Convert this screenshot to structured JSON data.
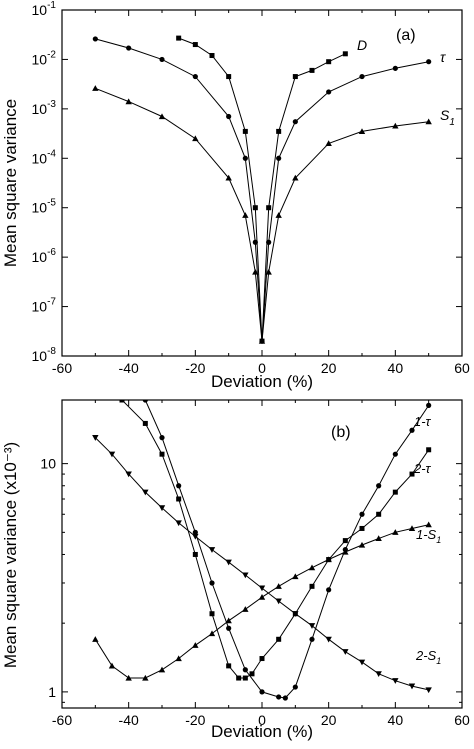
{
  "chart_data": [
    {
      "panel": "(a)",
      "type": "line",
      "xlabel": "Deviation (%)",
      "ylabel": "Mean square variance",
      "xlim": [
        -60,
        60
      ],
      "ylim": [
        1e-08,
        0.1
      ],
      "yscale": "log",
      "xticks": [
        "-60",
        "-40",
        "-20",
        "0",
        "20",
        "40",
        "60"
      ],
      "yticks": [
        {
          "base": "10",
          "exp": "-1"
        },
        {
          "base": "10",
          "exp": "-2"
        },
        {
          "base": "10",
          "exp": "-3"
        },
        {
          "base": "10",
          "exp": "-4"
        },
        {
          "base": "10",
          "exp": "-5"
        },
        {
          "base": "10",
          "exp": "-6"
        },
        {
          "base": "10",
          "exp": "-7"
        },
        {
          "base": "10",
          "exp": "-8"
        }
      ],
      "legend": "none",
      "grid": false,
      "series": [
        {
          "name": "D",
          "marker": "square",
          "x": [
            -25,
            -20,
            -15,
            -10,
            -5,
            -2,
            0,
            2,
            5,
            10,
            15,
            20,
            25
          ],
          "y": [
            0.027,
            0.02,
            0.012,
            0.0045,
            0.00035,
            1e-05,
            2e-08,
            1e-05,
            0.00035,
            0.0045,
            0.006,
            0.009,
            0.013
          ]
        },
        {
          "name": "τ",
          "marker": "circle",
          "x": [
            -50,
            -40,
            -30,
            -20,
            -10,
            -5,
            -2,
            0,
            2,
            5,
            10,
            20,
            30,
            40,
            50
          ],
          "y": [
            0.026,
            0.017,
            0.01,
            0.0045,
            0.0007,
            0.0001,
            2e-06,
            2e-08,
            2e-06,
            0.0001,
            0.00055,
            0.0022,
            0.0045,
            0.0066,
            0.009
          ]
        },
        {
          "name": "S1",
          "label_base": "S",
          "label_sub": "1",
          "marker": "triangle",
          "x": [
            -50,
            -40,
            -30,
            -20,
            -10,
            -5,
            -2,
            0,
            2,
            5,
            10,
            20,
            30,
            40,
            50
          ],
          "y": [
            0.0026,
            0.0014,
            0.0007,
            0.00025,
            4e-05,
            7e-06,
            5e-07,
            2e-08,
            5e-07,
            7e-06,
            4e-05,
            0.0002,
            0.00035,
            0.00045,
            0.00055
          ]
        }
      ]
    },
    {
      "panel": "(b)",
      "type": "line",
      "xlabel": "Deviation (%)",
      "ylabel": "Mean square variance (x10⁻³)",
      "xlim": [
        -60,
        60
      ],
      "ylim": [
        0.85,
        19
      ],
      "yscale": "log",
      "xticks": [
        "-60",
        "-40",
        "-20",
        "0",
        "20",
        "40",
        "60"
      ],
      "yticks": [
        "1",
        "10"
      ],
      "legend": "none",
      "grid": false,
      "series": [
        {
          "name": "1-τ",
          "marker": "circle",
          "x": [
            -35,
            -30,
            -25,
            -20,
            -15,
            -10,
            -5,
            0,
            5,
            7,
            10,
            15,
            20,
            25,
            30,
            35,
            40,
            45,
            50
          ],
          "y": [
            19,
            13,
            8,
            5,
            3,
            1.9,
            1.25,
            1.0,
            0.95,
            0.94,
            1.05,
            1.7,
            2.8,
            4.2,
            6.0,
            8.0,
            11,
            14,
            18
          ]
        },
        {
          "name": "2-τ",
          "marker": "square",
          "x": [
            -42,
            -35,
            -30,
            -25,
            -20,
            -15,
            -10,
            -7,
            -5,
            -3,
            0,
            5,
            10,
            15,
            20,
            25,
            30,
            35,
            40,
            45,
            50
          ],
          "y": [
            19,
            15,
            11,
            7,
            4,
            2.2,
            1.3,
            1.15,
            1.15,
            1.2,
            1.4,
            1.7,
            2.2,
            2.9,
            3.8,
            4.6,
            5.2,
            6.0,
            7.5,
            9.0,
            11.5
          ]
        },
        {
          "name": "1-S1",
          "label_base": "1-S",
          "label_sub": "1",
          "marker": "triangle-up",
          "x": [
            -50,
            -45,
            -40,
            -35,
            -30,
            -25,
            -20,
            -15,
            -10,
            -5,
            0,
            5,
            10,
            15,
            20,
            25,
            30,
            35,
            40,
            45,
            50
          ],
          "y": [
            1.7,
            1.3,
            1.15,
            1.15,
            1.25,
            1.4,
            1.6,
            1.8,
            2.05,
            2.3,
            2.6,
            2.9,
            3.2,
            3.5,
            3.8,
            4.1,
            4.4,
            4.7,
            5.0,
            5.2,
            5.4
          ]
        },
        {
          "name": "2-S1",
          "label_base": "2-S",
          "label_sub": "1",
          "marker": "triangle-down",
          "x": [
            -50,
            -45,
            -40,
            -35,
            -30,
            -25,
            -20,
            -15,
            -10,
            -5,
            0,
            5,
            10,
            15,
            20,
            25,
            30,
            35,
            40,
            45,
            50
          ],
          "y": [
            13,
            11,
            9,
            7.5,
            6.4,
            5.5,
            4.8,
            4.2,
            3.7,
            3.25,
            2.85,
            2.5,
            2.2,
            1.95,
            1.7,
            1.5,
            1.35,
            1.2,
            1.12,
            1.06,
            1.02
          ]
        }
      ]
    }
  ]
}
